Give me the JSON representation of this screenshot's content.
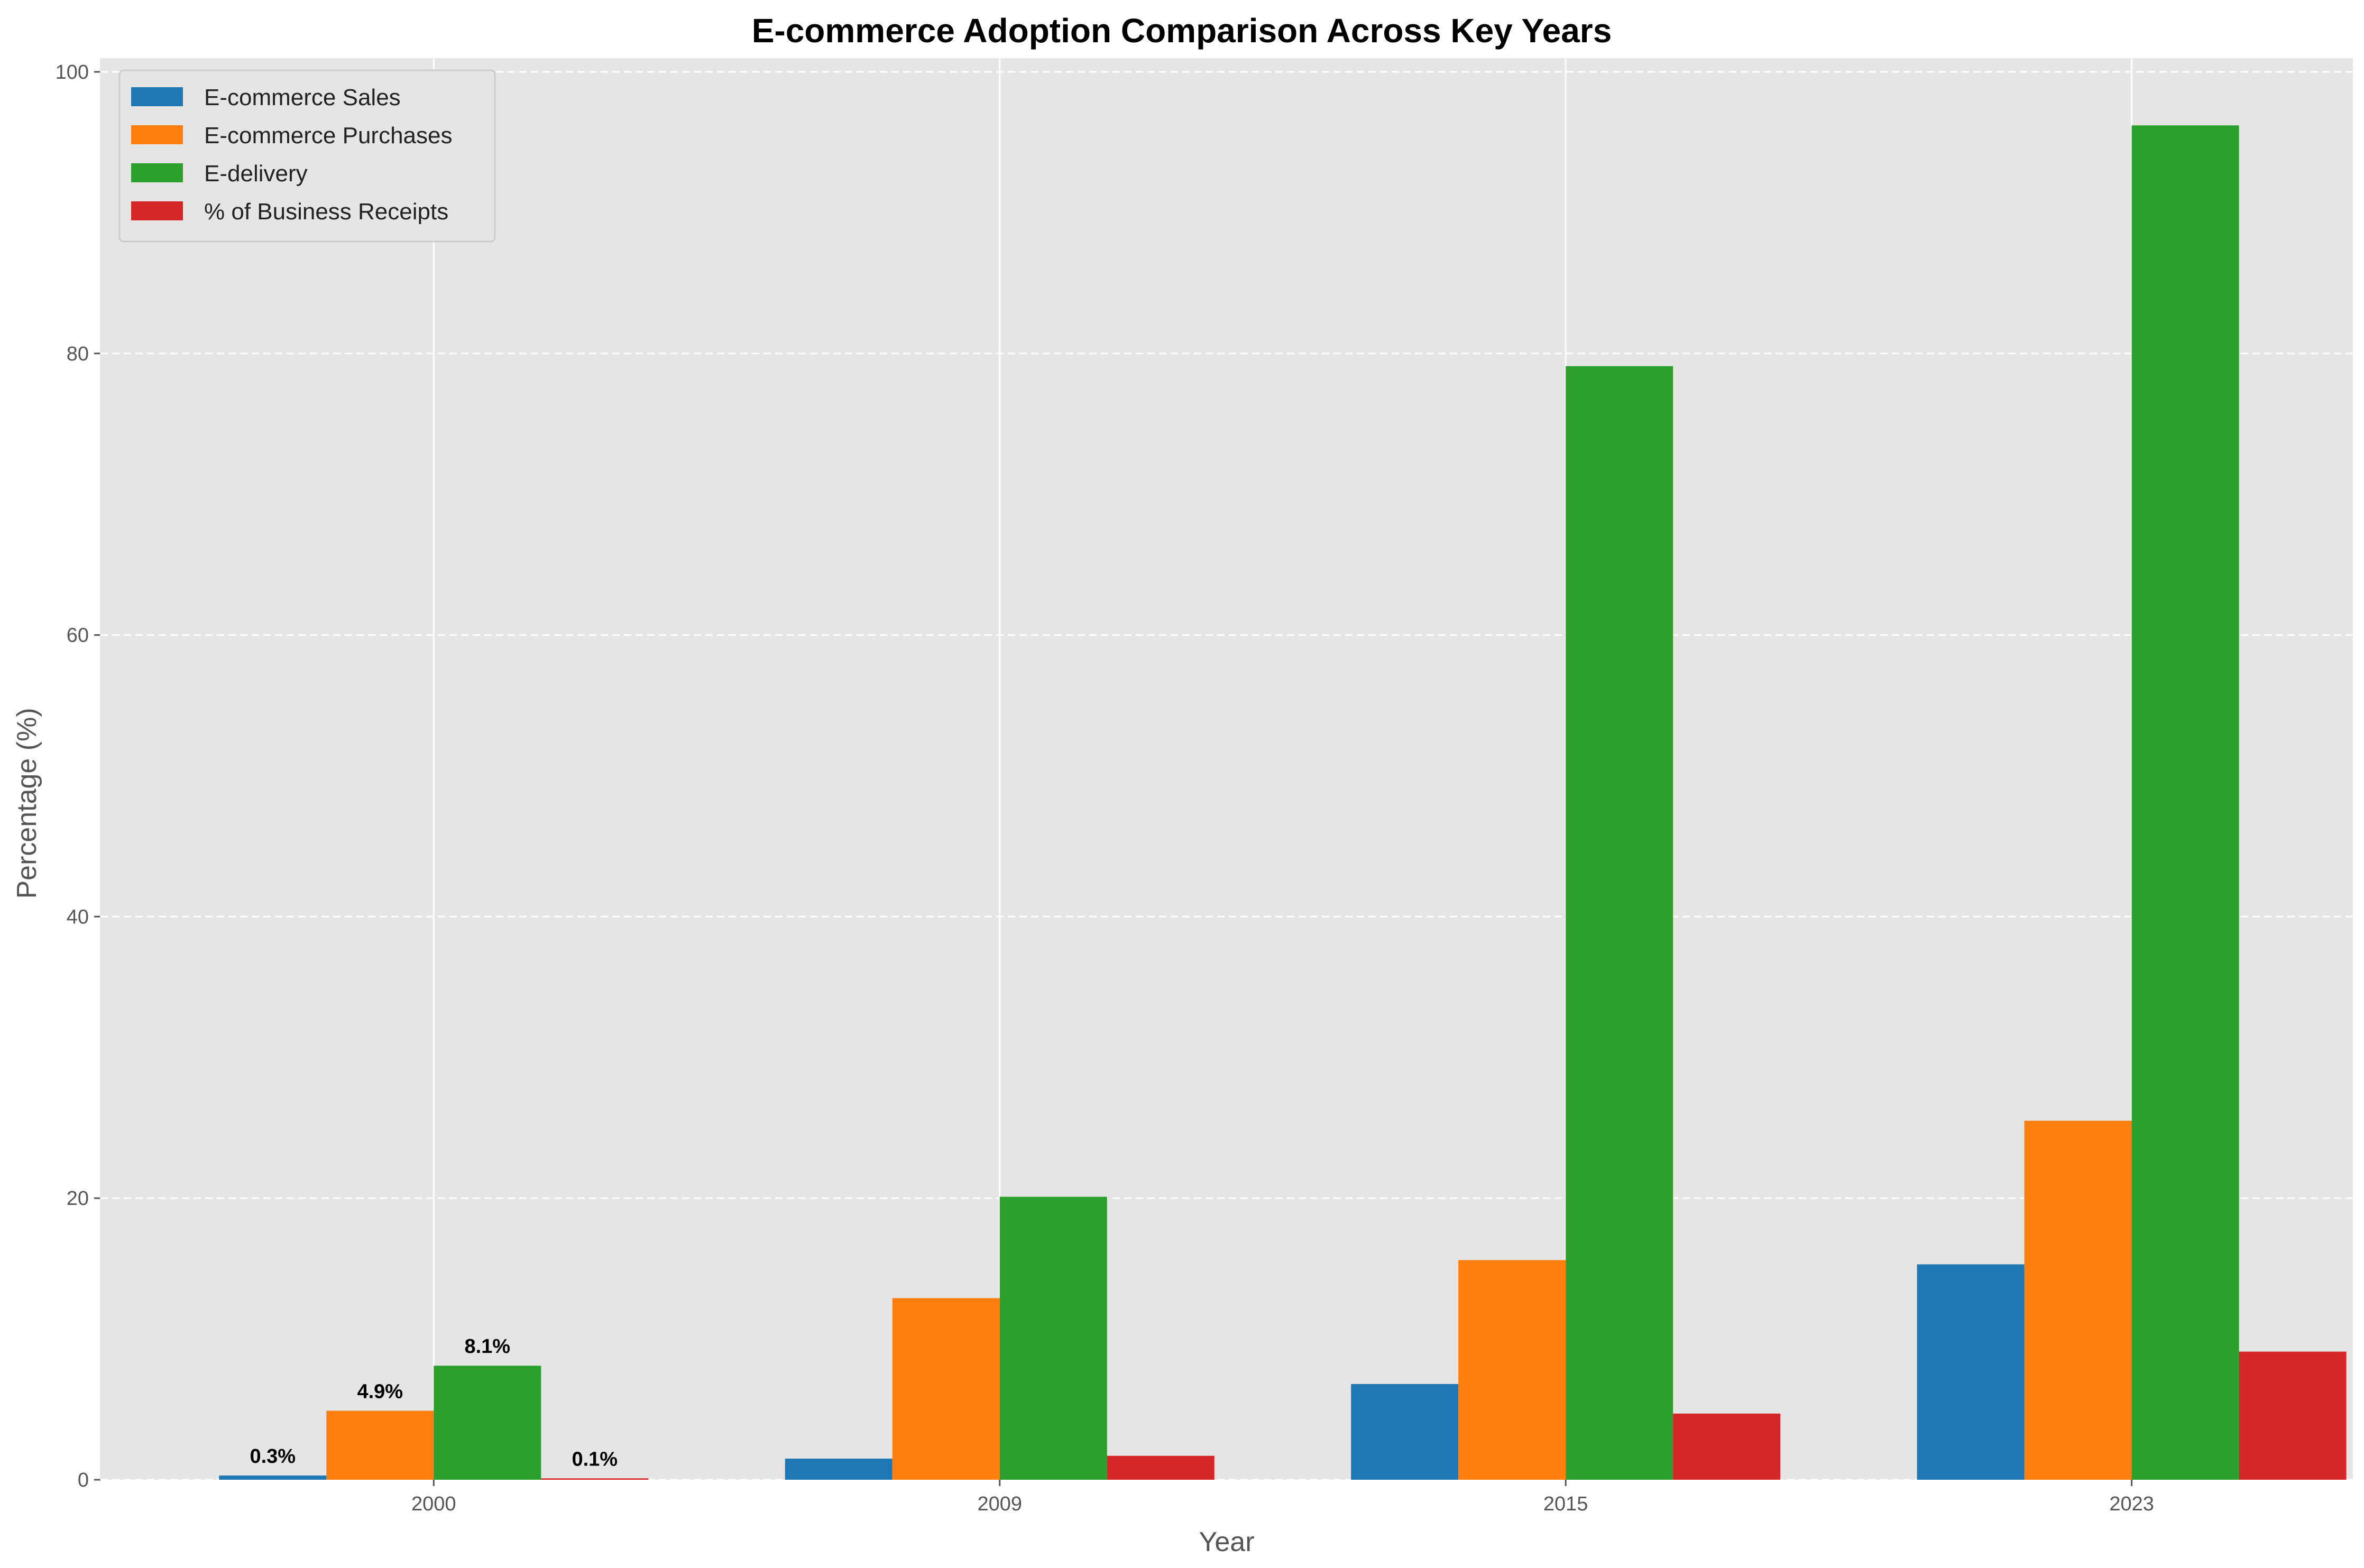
{
  "chart_data": {
    "type": "bar",
    "title": "E-commerce Adoption Comparison Across Key Years",
    "xlabel": "Year",
    "ylabel": "Percentage (%)",
    "categories": [
      "2000",
      "2009",
      "2015",
      "2023"
    ],
    "ylim": [
      0,
      100
    ],
    "yticks": [
      0,
      20,
      40,
      60,
      80,
      100
    ],
    "grid": true,
    "legend_position": "top-left",
    "series": [
      {
        "name": "E-commerce Sales",
        "color": "#1f77b4",
        "values": [
          0.3,
          1.5,
          6.8,
          15.3
        ]
      },
      {
        "name": "E-commerce Purchases",
        "color": "#ff7f0e",
        "values": [
          4.9,
          12.9,
          15.6,
          25.5
        ]
      },
      {
        "name": "E-delivery",
        "color": "#2ca02c",
        "values": [
          8.1,
          20.1,
          79.1,
          96.2
        ]
      },
      {
        "name": "% of Business Receipts",
        "color": "#d62728",
        "values": [
          0.1,
          1.7,
          4.7,
          9.1
        ]
      }
    ],
    "data_labels": [
      {
        "series": 0,
        "category": 0,
        "text": "0.3%"
      },
      {
        "series": 1,
        "category": 0,
        "text": "4.9%"
      },
      {
        "series": 2,
        "category": 0,
        "text": "8.1%"
      },
      {
        "series": 3,
        "category": 0,
        "text": "0.1%"
      }
    ],
    "colors": {
      "plot_background": "#e5e5e5",
      "grid": "#ffffff"
    }
  }
}
